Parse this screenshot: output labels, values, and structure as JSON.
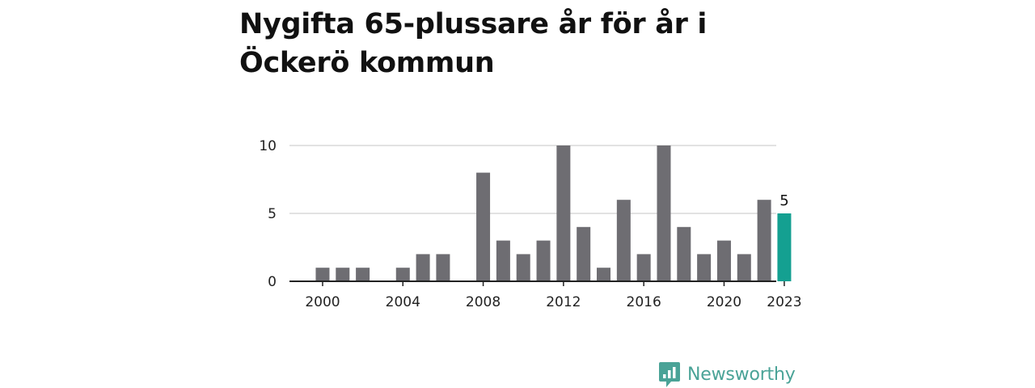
{
  "title": "Nygifta 65-plussare år för år i Öckerö kommun",
  "brand": {
    "name": "Newsworthy",
    "icon": "newsworthy-logo-icon",
    "color": "#4aa397"
  },
  "colors": {
    "bar": "#6e6d72",
    "highlight": "#14a091",
    "grid": "#d8d8d8",
    "axis": "#222222"
  },
  "chart_data": {
    "type": "bar",
    "title": "Nygifta 65-plussare år för år i Öckerö kommun",
    "xlabel": "",
    "ylabel": "",
    "categories": [
      2000,
      2001,
      2002,
      2003,
      2004,
      2005,
      2006,
      2007,
      2008,
      2009,
      2010,
      2011,
      2012,
      2013,
      2014,
      2015,
      2016,
      2017,
      2018,
      2019,
      2020,
      2021,
      2022,
      2023
    ],
    "values": [
      1,
      1,
      1,
      0,
      1,
      2,
      2,
      0,
      8,
      3,
      2,
      3,
      10,
      4,
      1,
      6,
      2,
      10,
      4,
      2,
      3,
      2,
      6,
      5
    ],
    "ylim": [
      0,
      10
    ],
    "y_ticks": [
      0,
      5,
      10
    ],
    "x_tick_labels": [
      "2000",
      "2004",
      "2008",
      "2012",
      "2016",
      "2020",
      "2023"
    ],
    "highlight": {
      "category": 2023,
      "value_label": "5"
    },
    "grid": true,
    "legend": "none"
  }
}
